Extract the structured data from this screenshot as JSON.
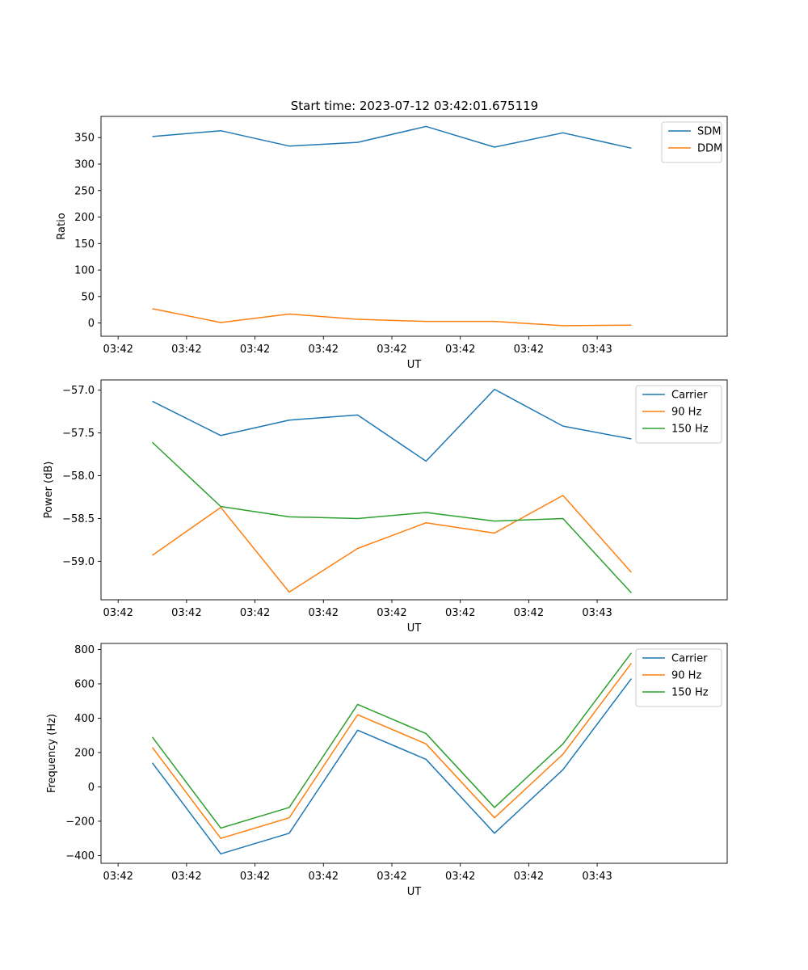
{
  "title": "Start time: 2023-07-12 03:42:01.675119",
  "chart_data": [
    {
      "type": "line",
      "ylabel": "Ratio",
      "xlabel": "UT",
      "x_tick_labels": [
        "03:42",
        "03:42",
        "03:42",
        "03:42",
        "03:42",
        "03:42",
        "03:42",
        "03:43"
      ],
      "xlim": [
        -0.25,
        8.9
      ],
      "ylim": [
        -25,
        390
      ],
      "y_ticks": [
        0,
        50,
        100,
        150,
        200,
        250,
        300,
        350
      ],
      "y_tick_labels": [
        "0",
        "50",
        "100",
        "150",
        "200",
        "250",
        "300",
        "350"
      ],
      "x": [
        0.5,
        1.5,
        2.5,
        3.5,
        4.5,
        5.5,
        6.5,
        7.5
      ],
      "legend_position": "top-right",
      "series": [
        {
          "name": "SDM",
          "color": "#1f77b4",
          "values": [
            352,
            363,
            334,
            341,
            371,
            332,
            359,
            330
          ]
        },
        {
          "name": "DDM",
          "color": "#ff7f0e",
          "values": [
            27,
            1,
            17,
            7,
            3,
            3,
            -5,
            -4
          ]
        }
      ]
    },
    {
      "type": "line",
      "ylabel": "Power (dB)",
      "xlabel": "UT",
      "x_tick_labels": [
        "03:42",
        "03:42",
        "03:42",
        "03:42",
        "03:42",
        "03:42",
        "03:42",
        "03:43"
      ],
      "xlim": [
        -0.25,
        8.9
      ],
      "ylim": [
        -59.45,
        -56.88
      ],
      "y_ticks": [
        -59.0,
        -58.5,
        -58.0,
        -57.5,
        -57.0
      ],
      "y_tick_labels": [
        "−59.0",
        "−58.5",
        "−58.0",
        "−57.5",
        "−57.0"
      ],
      "x": [
        0.5,
        1.5,
        2.5,
        3.5,
        4.5,
        5.5,
        6.5,
        7.5
      ],
      "legend_position": "top-right",
      "series": [
        {
          "name": "Carrier",
          "color": "#1f77b4",
          "values": [
            -57.13,
            -57.53,
            -57.35,
            -57.29,
            -57.83,
            -56.99,
            -57.42,
            -57.57
          ]
        },
        {
          "name": "90 Hz",
          "color": "#ff7f0e",
          "values": [
            -58.93,
            -58.37,
            -59.36,
            -58.85,
            -58.55,
            -58.67,
            -58.23,
            -59.13
          ]
        },
        {
          "name": "150 Hz",
          "color": "#2ca02c",
          "values": [
            -57.61,
            -58.36,
            -58.48,
            -58.5,
            -58.43,
            -58.53,
            -58.5,
            -59.37
          ]
        }
      ]
    },
    {
      "type": "line",
      "ylabel": "Frequency (Hz)",
      "xlabel": "UT",
      "x_tick_labels": [
        "03:42",
        "03:42",
        "03:42",
        "03:42",
        "03:42",
        "03:42",
        "03:42",
        "03:43"
      ],
      "xlim": [
        -0.25,
        8.9
      ],
      "ylim": [
        -445,
        835
      ],
      "y_ticks": [
        -400,
        -200,
        0,
        200,
        400,
        600,
        800
      ],
      "y_tick_labels": [
        "−400",
        "−200",
        "0",
        "200",
        "400",
        "600",
        "800"
      ],
      "x": [
        0.5,
        1.5,
        2.5,
        3.5,
        4.5,
        5.5,
        6.5,
        7.5
      ],
      "legend_position": "top-right",
      "series": [
        {
          "name": "Carrier",
          "color": "#1f77b4",
          "values": [
            140,
            -390,
            -270,
            330,
            160,
            -270,
            100,
            630
          ]
        },
        {
          "name": "90 Hz",
          "color": "#ff7f0e",
          "values": [
            230,
            -300,
            -180,
            420,
            250,
            -180,
            190,
            720
          ]
        },
        {
          "name": "150 Hz",
          "color": "#2ca02c",
          "values": [
            290,
            -240,
            -120,
            480,
            310,
            -120,
            250,
            780
          ]
        }
      ]
    }
  ]
}
